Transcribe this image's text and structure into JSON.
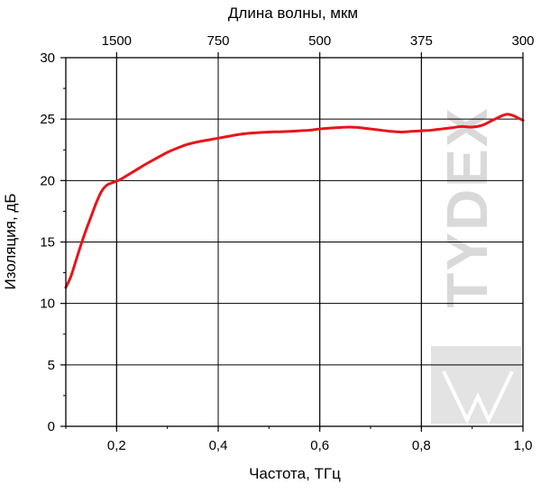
{
  "chart_data": {
    "type": "line",
    "title": "",
    "xlabel": "Частота, ТГц",
    "ylabel": "Изоляция, дБ",
    "x2label": "Длина волны, мкм",
    "xlim": [
      0.1,
      1.0
    ],
    "ylim": [
      0,
      30
    ],
    "grid": true,
    "x_ticks": [
      0.2,
      0.4,
      0.6,
      0.8,
      1.0
    ],
    "x_tick_labels": [
      "0,2",
      "0,4",
      "0,6",
      "0,8",
      "1,0"
    ],
    "y_ticks": [
      0,
      5,
      10,
      15,
      20,
      25,
      30
    ],
    "y_tick_labels": [
      "0",
      "5",
      "10",
      "15",
      "20",
      "25",
      "30"
    ],
    "x2_ticks": [
      1500,
      750,
      500,
      375,
      300
    ],
    "x2_tick_labels": [
      "1500",
      "750",
      "500",
      "375",
      "300"
    ],
    "series": [
      {
        "color": "#e8141c",
        "x": [
          0.1,
          0.11,
          0.12,
          0.13,
          0.14,
          0.15,
          0.16,
          0.17,
          0.18,
          0.19,
          0.2,
          0.21,
          0.22,
          0.24,
          0.26,
          0.28,
          0.3,
          0.32,
          0.34,
          0.36,
          0.38,
          0.4,
          0.42,
          0.44,
          0.46,
          0.48,
          0.5,
          0.52,
          0.54,
          0.56,
          0.58,
          0.6,
          0.62,
          0.64,
          0.66,
          0.68,
          0.7,
          0.72,
          0.74,
          0.76,
          0.78,
          0.8,
          0.82,
          0.84,
          0.86,
          0.88,
          0.9,
          0.92,
          0.94,
          0.96,
          0.97,
          0.98,
          0.99,
          1.0
        ],
        "values": [
          11.3,
          12.2,
          13.5,
          14.8,
          16.0,
          17.1,
          18.2,
          19.1,
          19.6,
          19.8,
          19.95,
          20.15,
          20.4,
          20.9,
          21.4,
          21.85,
          22.3,
          22.65,
          22.95,
          23.15,
          23.3,
          23.45,
          23.6,
          23.75,
          23.85,
          23.9,
          23.95,
          23.97,
          24.0,
          24.05,
          24.1,
          24.2,
          24.27,
          24.32,
          24.35,
          24.3,
          24.2,
          24.1,
          24.0,
          23.95,
          24.0,
          24.05,
          24.1,
          24.2,
          24.3,
          24.4,
          24.35,
          24.5,
          24.9,
          25.3,
          25.4,
          25.3,
          25.1,
          24.9
        ]
      }
    ]
  },
  "watermark": {
    "brand": "TYDEX"
  }
}
